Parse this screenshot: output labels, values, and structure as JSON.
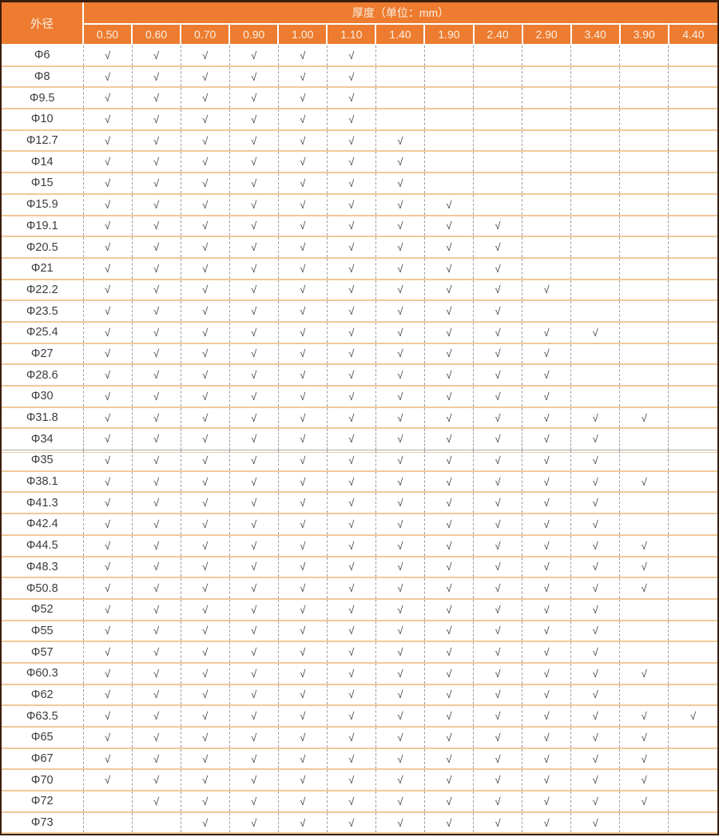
{
  "table": {
    "corner_header": "外径",
    "group_header": "厚度（单位：mm）",
    "thickness_columns": [
      "0.50",
      "0.60",
      "0.70",
      "0.90",
      "1.00",
      "1.10",
      "1.40",
      "1.90",
      "2.40",
      "2.90",
      "3.40",
      "3.90",
      "4.40"
    ],
    "check_symbol": "√",
    "rows": [
      {
        "diameter": "Φ6",
        "section_start": false,
        "checks": [
          1,
          1,
          1,
          1,
          1,
          1,
          0,
          0,
          0,
          0,
          0,
          0,
          0
        ]
      },
      {
        "diameter": "Φ8",
        "section_start": false,
        "checks": [
          1,
          1,
          1,
          1,
          1,
          1,
          0,
          0,
          0,
          0,
          0,
          0,
          0
        ]
      },
      {
        "diameter": "Φ9.5",
        "section_start": false,
        "checks": [
          1,
          1,
          1,
          1,
          1,
          1,
          0,
          0,
          0,
          0,
          0,
          0,
          0
        ]
      },
      {
        "diameter": "Φ10",
        "section_start": false,
        "checks": [
          1,
          1,
          1,
          1,
          1,
          1,
          0,
          0,
          0,
          0,
          0,
          0,
          0
        ]
      },
      {
        "diameter": "Φ12.7",
        "section_start": false,
        "checks": [
          1,
          1,
          1,
          1,
          1,
          1,
          1,
          0,
          0,
          0,
          0,
          0,
          0
        ]
      },
      {
        "diameter": "Φ14",
        "section_start": false,
        "checks": [
          1,
          1,
          1,
          1,
          1,
          1,
          1,
          0,
          0,
          0,
          0,
          0,
          0
        ]
      },
      {
        "diameter": "Φ15",
        "section_start": false,
        "checks": [
          1,
          1,
          1,
          1,
          1,
          1,
          1,
          0,
          0,
          0,
          0,
          0,
          0
        ]
      },
      {
        "diameter": "Φ15.9",
        "section_start": false,
        "checks": [
          1,
          1,
          1,
          1,
          1,
          1,
          1,
          1,
          0,
          0,
          0,
          0,
          0
        ]
      },
      {
        "diameter": "Φ19.1",
        "section_start": false,
        "checks": [
          1,
          1,
          1,
          1,
          1,
          1,
          1,
          1,
          1,
          0,
          0,
          0,
          0
        ]
      },
      {
        "diameter": "Φ20.5",
        "section_start": false,
        "checks": [
          1,
          1,
          1,
          1,
          1,
          1,
          1,
          1,
          1,
          0,
          0,
          0,
          0
        ]
      },
      {
        "diameter": "Φ21",
        "section_start": false,
        "checks": [
          1,
          1,
          1,
          1,
          1,
          1,
          1,
          1,
          1,
          0,
          0,
          0,
          0
        ]
      },
      {
        "diameter": "Φ22.2",
        "section_start": false,
        "checks": [
          1,
          1,
          1,
          1,
          1,
          1,
          1,
          1,
          1,
          1,
          0,
          0,
          0
        ]
      },
      {
        "diameter": "Φ23.5",
        "section_start": false,
        "checks": [
          1,
          1,
          1,
          1,
          1,
          1,
          1,
          1,
          1,
          0,
          0,
          0,
          0
        ]
      },
      {
        "diameter": "Φ25.4",
        "section_start": false,
        "checks": [
          1,
          1,
          1,
          1,
          1,
          1,
          1,
          1,
          1,
          1,
          1,
          0,
          0
        ]
      },
      {
        "diameter": "Φ27",
        "section_start": false,
        "checks": [
          1,
          1,
          1,
          1,
          1,
          1,
          1,
          1,
          1,
          1,
          0,
          0,
          0
        ]
      },
      {
        "diameter": "Φ28.6",
        "section_start": false,
        "checks": [
          1,
          1,
          1,
          1,
          1,
          1,
          1,
          1,
          1,
          1,
          0,
          0,
          0
        ]
      },
      {
        "diameter": "Φ30",
        "section_start": false,
        "checks": [
          1,
          1,
          1,
          1,
          1,
          1,
          1,
          1,
          1,
          1,
          0,
          0,
          0
        ]
      },
      {
        "diameter": "Φ31.8",
        "section_start": false,
        "checks": [
          1,
          1,
          1,
          1,
          1,
          1,
          1,
          1,
          1,
          1,
          1,
          1,
          0
        ]
      },
      {
        "diameter": "Φ34",
        "section_start": false,
        "checks": [
          1,
          1,
          1,
          1,
          1,
          1,
          1,
          1,
          1,
          1,
          1,
          0,
          0
        ]
      },
      {
        "diameter": "Φ35",
        "section_start": true,
        "checks": [
          1,
          1,
          1,
          1,
          1,
          1,
          1,
          1,
          1,
          1,
          1,
          0,
          0
        ]
      },
      {
        "diameter": "Φ38.1",
        "section_start": false,
        "checks": [
          1,
          1,
          1,
          1,
          1,
          1,
          1,
          1,
          1,
          1,
          1,
          1,
          0
        ]
      },
      {
        "diameter": "Φ41.3",
        "section_start": false,
        "checks": [
          1,
          1,
          1,
          1,
          1,
          1,
          1,
          1,
          1,
          1,
          1,
          0,
          0
        ]
      },
      {
        "diameter": "Φ42.4",
        "section_start": false,
        "checks": [
          1,
          1,
          1,
          1,
          1,
          1,
          1,
          1,
          1,
          1,
          1,
          0,
          0
        ]
      },
      {
        "diameter": "Φ44.5",
        "section_start": false,
        "checks": [
          1,
          1,
          1,
          1,
          1,
          1,
          1,
          1,
          1,
          1,
          1,
          1,
          0
        ]
      },
      {
        "diameter": "Φ48.3",
        "section_start": false,
        "checks": [
          1,
          1,
          1,
          1,
          1,
          1,
          1,
          1,
          1,
          1,
          1,
          1,
          0
        ]
      },
      {
        "diameter": "Φ50.8",
        "section_start": false,
        "checks": [
          1,
          1,
          1,
          1,
          1,
          1,
          1,
          1,
          1,
          1,
          1,
          1,
          0
        ]
      },
      {
        "diameter": "Φ52",
        "section_start": false,
        "checks": [
          1,
          1,
          1,
          1,
          1,
          1,
          1,
          1,
          1,
          1,
          1,
          0,
          0
        ]
      },
      {
        "diameter": "Φ55",
        "section_start": false,
        "checks": [
          1,
          1,
          1,
          1,
          1,
          1,
          1,
          1,
          1,
          1,
          1,
          0,
          0
        ]
      },
      {
        "diameter": "Φ57",
        "section_start": false,
        "checks": [
          1,
          1,
          1,
          1,
          1,
          1,
          1,
          1,
          1,
          1,
          1,
          0,
          0
        ]
      },
      {
        "diameter": "Φ60.3",
        "section_start": false,
        "checks": [
          1,
          1,
          1,
          1,
          1,
          1,
          1,
          1,
          1,
          1,
          1,
          1,
          0
        ]
      },
      {
        "diameter": "Φ62",
        "section_start": false,
        "checks": [
          1,
          1,
          1,
          1,
          1,
          1,
          1,
          1,
          1,
          1,
          1,
          0,
          0
        ]
      },
      {
        "diameter": "Φ63.5",
        "section_start": false,
        "checks": [
          1,
          1,
          1,
          1,
          1,
          1,
          1,
          1,
          1,
          1,
          1,
          1,
          1
        ]
      },
      {
        "diameter": "Φ65",
        "section_start": false,
        "checks": [
          1,
          1,
          1,
          1,
          1,
          1,
          1,
          1,
          1,
          1,
          1,
          1,
          0
        ]
      },
      {
        "diameter": "Φ67",
        "section_start": false,
        "checks": [
          1,
          1,
          1,
          1,
          1,
          1,
          1,
          1,
          1,
          1,
          1,
          1,
          0
        ]
      },
      {
        "diameter": "Φ70",
        "section_start": false,
        "checks": [
          1,
          1,
          1,
          1,
          1,
          1,
          1,
          1,
          1,
          1,
          1,
          1,
          0
        ]
      },
      {
        "diameter": "Φ72",
        "section_start": false,
        "checks": [
          0,
          1,
          1,
          1,
          1,
          1,
          1,
          1,
          1,
          1,
          1,
          1,
          0
        ]
      },
      {
        "diameter": "Φ73",
        "section_start": false,
        "checks": [
          0,
          0,
          1,
          1,
          1,
          1,
          1,
          1,
          1,
          1,
          1,
          0,
          0
        ]
      }
    ]
  },
  "colors": {
    "header_bg": "#ED7C30",
    "header_text": "#FBEFE2",
    "outer_border": "#3B1D0B",
    "row_line": "#F0C998",
    "col_line": "#9B9B9B",
    "check_color": "#3F3F3F",
    "label_color": "#3B3B3B",
    "section_line": "#ACACAC"
  }
}
